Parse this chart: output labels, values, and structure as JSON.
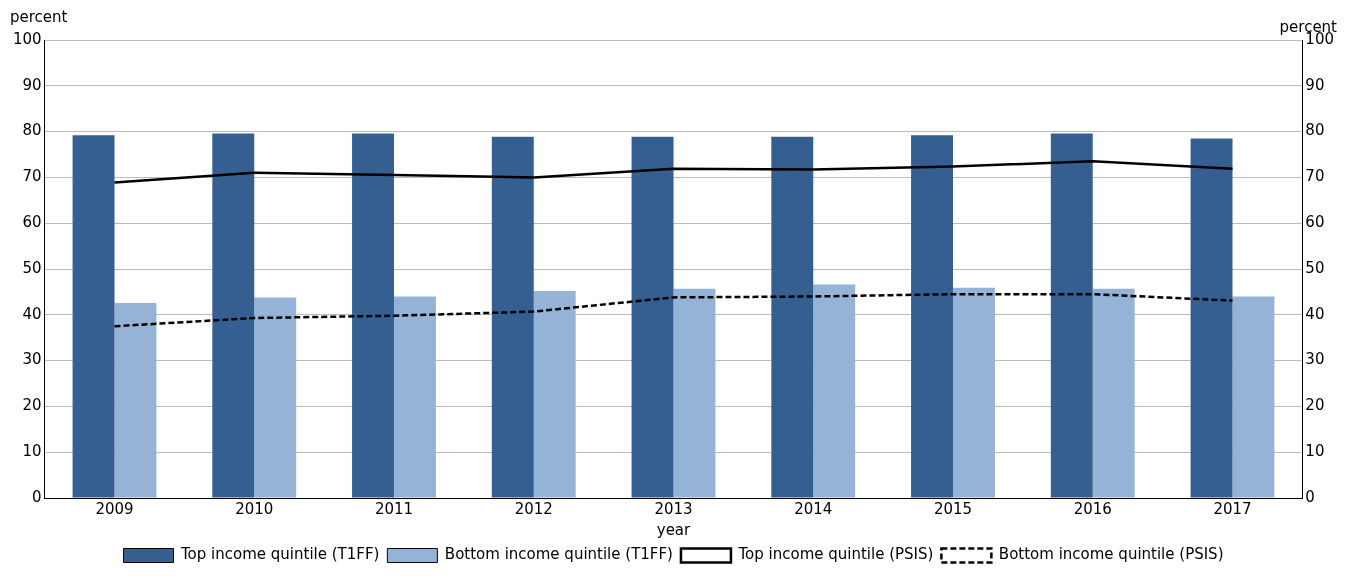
{
  "chart_data": {
    "type": "bar",
    "categories": [
      "2009",
      "2010",
      "2011",
      "2012",
      "2013",
      "2014",
      "2015",
      "2016",
      "2017"
    ],
    "series": [
      {
        "name": "Top income quintile (T1FF)",
        "color": "#355f91",
        "values": [
          79.2,
          79.6,
          79.6,
          78.9,
          78.9,
          78.9,
          79.2,
          79.6,
          78.5
        ]
      },
      {
        "name": "Bottom income quintile (T1FF)",
        "color": "#95b3d7",
        "values": [
          42.6,
          43.8,
          44.0,
          45.2,
          45.7,
          46.6,
          45.9,
          45.7,
          44.0
        ]
      },
      {
        "name": "Top income quintile (PSIS)",
        "type": "line",
        "color": "#000000",
        "line_style": "solid",
        "values": [
          68.9,
          71.0,
          70.5,
          70.0,
          71.9,
          71.7,
          72.4,
          73.5,
          71.9
        ]
      },
      {
        "name": "Bottom income quintile (PSIS)",
        "type": "line",
        "color": "#000000",
        "line_style": "dashed",
        "values": [
          37.5,
          39.3,
          39.8,
          40.7,
          43.8,
          44.0,
          44.5,
          44.5,
          43.1
        ]
      }
    ],
    "xlabel": "year",
    "ylabel": "percent",
    "y2label": "percent",
    "ylim": [
      0,
      100
    ],
    "yticks": [
      0,
      10,
      20,
      30,
      40,
      50,
      60,
      70,
      80,
      90,
      100
    ],
    "y2lim": [
      0,
      100
    ],
    "y2ticks": [
      0,
      10,
      20,
      30,
      40,
      50,
      60,
      70,
      80,
      90,
      100
    ],
    "grid": "y",
    "legend": "bottom",
    "marker": "none"
  }
}
